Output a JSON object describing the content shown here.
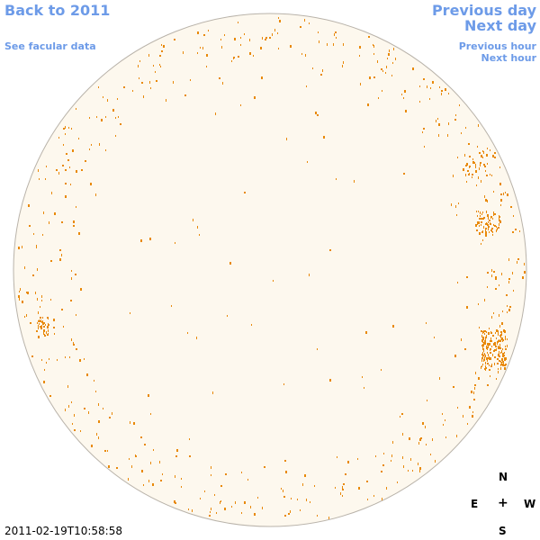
{
  "nav": {
    "back_label": "Back to 2011",
    "facular_label": "See facular data",
    "prev_day_label": "Previous day",
    "next_day_label": "Next day",
    "prev_hour_label": "Previous hour",
    "next_hour_label": "Next hour"
  },
  "timestamp": "2011-02-19T10:58:58",
  "compass": {
    "north": "N",
    "south": "S",
    "east": "E",
    "west": "W",
    "center": "+"
  },
  "colors": {
    "link": "#6d9be8",
    "disk_fill": "#fdf8ee",
    "disk_outline": "#b9b3aa",
    "feature": "#e8890a",
    "text": "#000000"
  },
  "disk_features": {
    "type": "scatter",
    "marker_icon": "sunspot-pixel",
    "clusters": [
      {
        "label": "west-limb-group-lower"
      },
      {
        "label": "west-limb-group-upper"
      },
      {
        "label": "north-west-group"
      },
      {
        "label": "east-limb-group"
      }
    ]
  }
}
